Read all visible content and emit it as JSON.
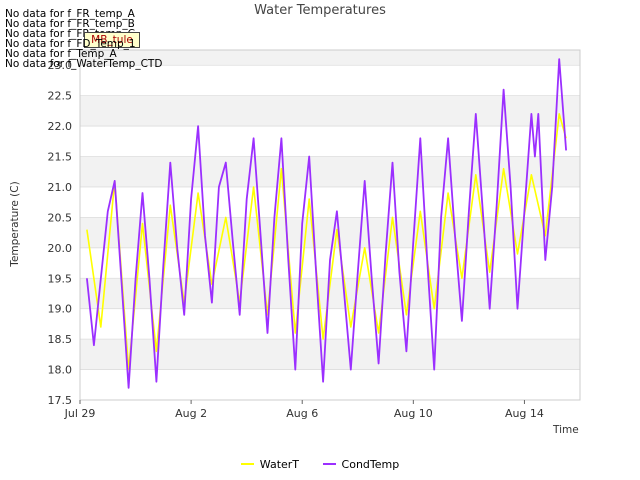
{
  "no_data_messages": [
    "No data for f_FR_temp_A",
    "No data for f_FR_temp_B",
    "No data for f_FR_temp_C",
    "No data for f_FD_Temp_1",
    "No data for f_Temp_A",
    "No data for f_WaterTemp_CTD"
  ],
  "site_tag": "MB_tule",
  "colors": {
    "watert": "#ffff00",
    "condtemp": "#9b2fff",
    "band": "#f2f2f2",
    "grid": "#dddddd"
  },
  "chart_data": {
    "type": "line",
    "title": "Water Temperatures",
    "xlabel": "Time",
    "ylabel": "Temperature (C)",
    "xlim": [
      "2023-07-29",
      "2023-08-16"
    ],
    "ylim": [
      17.5,
      23.25
    ],
    "x_ticks": [
      {
        "date": "2023-07-29",
        "label": "Jul 29"
      },
      {
        "date": "2023-08-02",
        "label": "Aug 2"
      },
      {
        "date": "2023-08-06",
        "label": "Aug 6"
      },
      {
        "date": "2023-08-10",
        "label": "Aug 10"
      },
      {
        "date": "2023-08-14",
        "label": "Aug 14"
      }
    ],
    "y_ticks": [
      17.5,
      18.0,
      18.5,
      19.0,
      19.5,
      20.0,
      20.5,
      21.0,
      21.5,
      22.0,
      22.5,
      23.0
    ],
    "grid": true,
    "legend": "bottom-center",
    "series": [
      {
        "name": "WaterT",
        "points": [
          [
            "2023-07-29T06:00",
            20.3
          ],
          [
            "2023-07-29T18:00",
            18.7
          ],
          [
            "2023-07-30T06:00",
            21.1
          ],
          [
            "2023-07-30T18:00",
            18.0
          ],
          [
            "2023-07-31T06:00",
            20.4
          ],
          [
            "2023-07-31T18:00",
            18.3
          ],
          [
            "2023-08-01T06:00",
            20.7
          ],
          [
            "2023-08-01T18:00",
            19.1
          ],
          [
            "2023-08-02T06:00",
            20.9
          ],
          [
            "2023-08-02T18:00",
            19.4
          ],
          [
            "2023-08-03T06:00",
            20.5
          ],
          [
            "2023-08-03T18:00",
            19.1
          ],
          [
            "2023-08-04T06:00",
            21.0
          ],
          [
            "2023-08-04T18:00",
            18.9
          ],
          [
            "2023-08-05T06:00",
            21.3
          ],
          [
            "2023-08-05T18:00",
            18.6
          ],
          [
            "2023-08-06T06:00",
            20.8
          ],
          [
            "2023-08-06T18:00",
            18.5
          ],
          [
            "2023-08-07T06:00",
            20.3
          ],
          [
            "2023-08-07T18:00",
            18.7
          ],
          [
            "2023-08-08T06:00",
            20.0
          ],
          [
            "2023-08-08T18:00",
            18.6
          ],
          [
            "2023-08-09T06:00",
            20.5
          ],
          [
            "2023-08-09T18:00",
            18.9
          ],
          [
            "2023-08-10T06:00",
            20.6
          ],
          [
            "2023-08-10T18:00",
            19.0
          ],
          [
            "2023-08-11T06:00",
            20.9
          ],
          [
            "2023-08-11T18:00",
            19.5
          ],
          [
            "2023-08-12T06:00",
            21.2
          ],
          [
            "2023-08-12T18:00",
            19.6
          ],
          [
            "2023-08-13T06:00",
            21.3
          ],
          [
            "2023-08-13T18:00",
            19.9
          ],
          [
            "2023-08-14T06:00",
            21.2
          ],
          [
            "2023-08-14T18:00",
            20.2
          ],
          [
            "2023-08-15T06:00",
            22.2
          ],
          [
            "2023-08-15T12:00",
            21.8
          ]
        ]
      },
      {
        "name": "CondTemp",
        "points": [
          [
            "2023-07-29T06:00",
            19.5
          ],
          [
            "2023-07-29T12:00",
            18.4
          ],
          [
            "2023-07-30T00:00",
            20.6
          ],
          [
            "2023-07-30T06:00",
            21.1
          ],
          [
            "2023-07-30T12:00",
            19.4
          ],
          [
            "2023-07-30T18:00",
            17.7
          ],
          [
            "2023-07-31T00:00",
            19.5
          ],
          [
            "2023-07-31T06:00",
            20.9
          ],
          [
            "2023-07-31T12:00",
            19.5
          ],
          [
            "2023-07-31T18:00",
            17.8
          ],
          [
            "2023-08-01T00:00",
            19.7
          ],
          [
            "2023-08-01T06:00",
            21.4
          ],
          [
            "2023-08-01T12:00",
            20.0
          ],
          [
            "2023-08-01T18:00",
            18.9
          ],
          [
            "2023-08-02T00:00",
            20.8
          ],
          [
            "2023-08-02T06:00",
            22.0
          ],
          [
            "2023-08-02T12:00",
            20.2
          ],
          [
            "2023-08-02T18:00",
            19.1
          ],
          [
            "2023-08-03T00:00",
            21.0
          ],
          [
            "2023-08-03T06:00",
            21.4
          ],
          [
            "2023-08-03T12:00",
            20.1
          ],
          [
            "2023-08-03T18:00",
            18.9
          ],
          [
            "2023-08-04T00:00",
            20.8
          ],
          [
            "2023-08-04T06:00",
            21.8
          ],
          [
            "2023-08-04T12:00",
            20.2
          ],
          [
            "2023-08-04T18:00",
            18.6
          ],
          [
            "2023-08-05T00:00",
            20.5
          ],
          [
            "2023-08-05T06:00",
            21.8
          ],
          [
            "2023-08-05T12:00",
            19.8
          ],
          [
            "2023-08-05T18:00",
            18.0
          ],
          [
            "2023-08-06T00:00",
            20.4
          ],
          [
            "2023-08-06T06:00",
            21.5
          ],
          [
            "2023-08-06T12:00",
            19.6
          ],
          [
            "2023-08-06T18:00",
            17.8
          ],
          [
            "2023-08-07T00:00",
            19.8
          ],
          [
            "2023-08-07T06:00",
            20.6
          ],
          [
            "2023-08-07T12:00",
            19.3
          ],
          [
            "2023-08-07T18:00",
            18.0
          ],
          [
            "2023-08-08T00:00",
            19.6
          ],
          [
            "2023-08-08T06:00",
            21.1
          ],
          [
            "2023-08-08T12:00",
            19.5
          ],
          [
            "2023-08-08T18:00",
            18.1
          ],
          [
            "2023-08-09T00:00",
            19.9
          ],
          [
            "2023-08-09T06:00",
            21.4
          ],
          [
            "2023-08-09T12:00",
            19.6
          ],
          [
            "2023-08-09T18:00",
            18.3
          ],
          [
            "2023-08-10T00:00",
            20.1
          ],
          [
            "2023-08-10T06:00",
            21.8
          ],
          [
            "2023-08-10T12:00",
            19.8
          ],
          [
            "2023-08-10T18:00",
            18.0
          ],
          [
            "2023-08-11T00:00",
            20.5
          ],
          [
            "2023-08-11T06:00",
            21.8
          ],
          [
            "2023-08-11T12:00",
            20.2
          ],
          [
            "2023-08-11T18:00",
            18.8
          ],
          [
            "2023-08-12T00:00",
            20.6
          ],
          [
            "2023-08-12T06:00",
            22.2
          ],
          [
            "2023-08-12T12:00",
            20.6
          ],
          [
            "2023-08-12T18:00",
            19.0
          ],
          [
            "2023-08-13T00:00",
            20.7
          ],
          [
            "2023-08-13T06:00",
            22.6
          ],
          [
            "2023-08-13T12:00",
            21.0
          ],
          [
            "2023-08-13T18:00",
            19.0
          ],
          [
            "2023-08-14T00:00",
            20.6
          ],
          [
            "2023-08-14T06:00",
            22.2
          ],
          [
            "2023-08-14T09:00",
            21.5
          ],
          [
            "2023-08-14T12:00",
            22.2
          ],
          [
            "2023-08-14T18:00",
            19.8
          ],
          [
            "2023-08-15T00:00",
            21.0
          ],
          [
            "2023-08-15T06:00",
            23.1
          ],
          [
            "2023-08-15T12:00",
            21.6
          ]
        ]
      }
    ]
  }
}
